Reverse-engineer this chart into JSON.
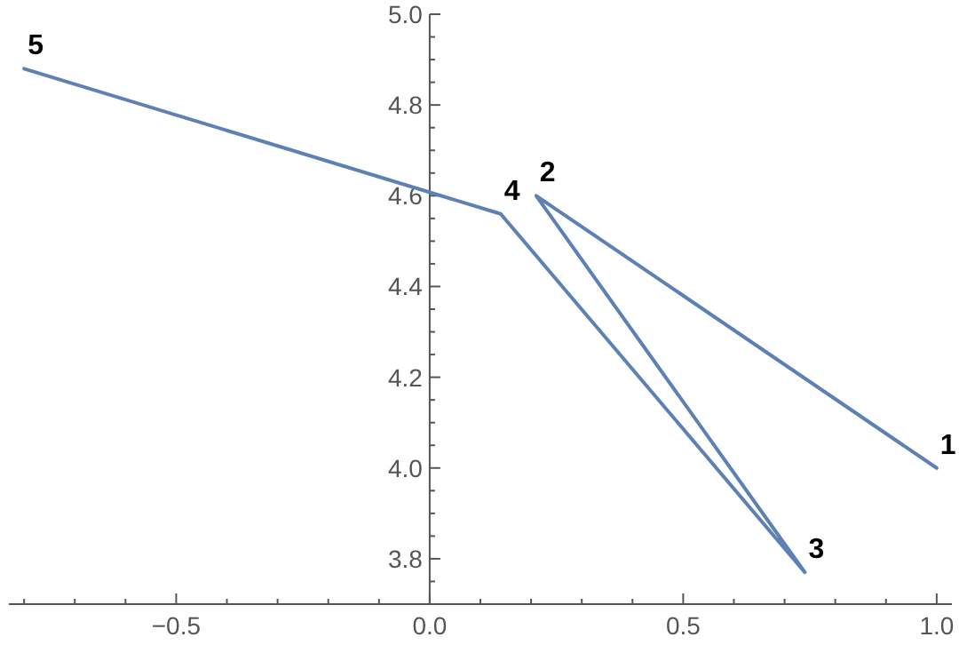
{
  "chart_data": {
    "type": "line",
    "x": [
      1.0,
      0.21,
      0.74,
      0.14,
      -0.8
    ],
    "series": [
      {
        "color": "#5e81b5",
        "values": [
          4.0,
          4.6,
          3.77,
          4.56,
          4.88
        ]
      }
    ],
    "xlim": [
      -0.83,
      1.03
    ],
    "ylim": [
      3.7,
      5.0
    ],
    "xticks": [
      {
        "value": -0.8,
        "label": null
      },
      {
        "value": -0.7,
        "label": null
      },
      {
        "value": -0.6,
        "label": null
      },
      {
        "value": -0.5,
        "label": "−0.5"
      },
      {
        "value": -0.4,
        "label": null
      },
      {
        "value": -0.3,
        "label": null
      },
      {
        "value": -0.2,
        "label": null
      },
      {
        "value": -0.1,
        "label": null
      },
      {
        "value": 0,
        "label": "0.0"
      },
      {
        "value": 0.1,
        "label": null
      },
      {
        "value": 0.2,
        "label": null
      },
      {
        "value": 0.3,
        "label": null
      },
      {
        "value": 0.4,
        "label": null
      },
      {
        "value": 0.5,
        "label": "0.5"
      },
      {
        "value": 0.6,
        "label": null
      },
      {
        "value": 0.7,
        "label": null
      },
      {
        "value": 0.8,
        "label": null
      },
      {
        "value": 0.9,
        "label": null
      },
      {
        "value": 1.0,
        "label": "1.0"
      }
    ],
    "yticks": [
      {
        "value": 3.75,
        "label": null
      },
      {
        "value": 3.8,
        "label": "3.8"
      },
      {
        "value": 3.85,
        "label": null
      },
      {
        "value": 3.9,
        "label": null
      },
      {
        "value": 3.95,
        "label": null
      },
      {
        "value": 4.0,
        "label": "4.0"
      },
      {
        "value": 4.05,
        "label": null
      },
      {
        "value": 4.1,
        "label": null
      },
      {
        "value": 4.15,
        "label": null
      },
      {
        "value": 4.2,
        "label": "4.2"
      },
      {
        "value": 4.25,
        "label": null
      },
      {
        "value": 4.3,
        "label": null
      },
      {
        "value": 4.35,
        "label": null
      },
      {
        "value": 4.4,
        "label": "4.4"
      },
      {
        "value": 4.45,
        "label": null
      },
      {
        "value": 4.5,
        "label": null
      },
      {
        "value": 4.55,
        "label": null
      },
      {
        "value": 4.6,
        "label": "4.6"
      },
      {
        "value": 4.65,
        "label": null
      },
      {
        "value": 4.7,
        "label": null
      },
      {
        "value": 4.75,
        "label": null
      },
      {
        "value": 4.8,
        "label": "4.8"
      },
      {
        "value": 4.85,
        "label": null
      },
      {
        "value": 4.9,
        "label": null
      },
      {
        "value": 4.95,
        "label": null
      },
      {
        "value": 5.0,
        "label": "5.0"
      }
    ],
    "annotations": [
      {
        "text": "1",
        "x": 1.0,
        "y": 4.0
      },
      {
        "text": "2",
        "x": 0.21,
        "y": 4.6
      },
      {
        "text": "3",
        "x": 0.74,
        "y": 3.77
      },
      {
        "text": "4",
        "x": 0.14,
        "y": 4.56
      },
      {
        "text": "5",
        "x": -0.8,
        "y": 4.88
      }
    ]
  }
}
